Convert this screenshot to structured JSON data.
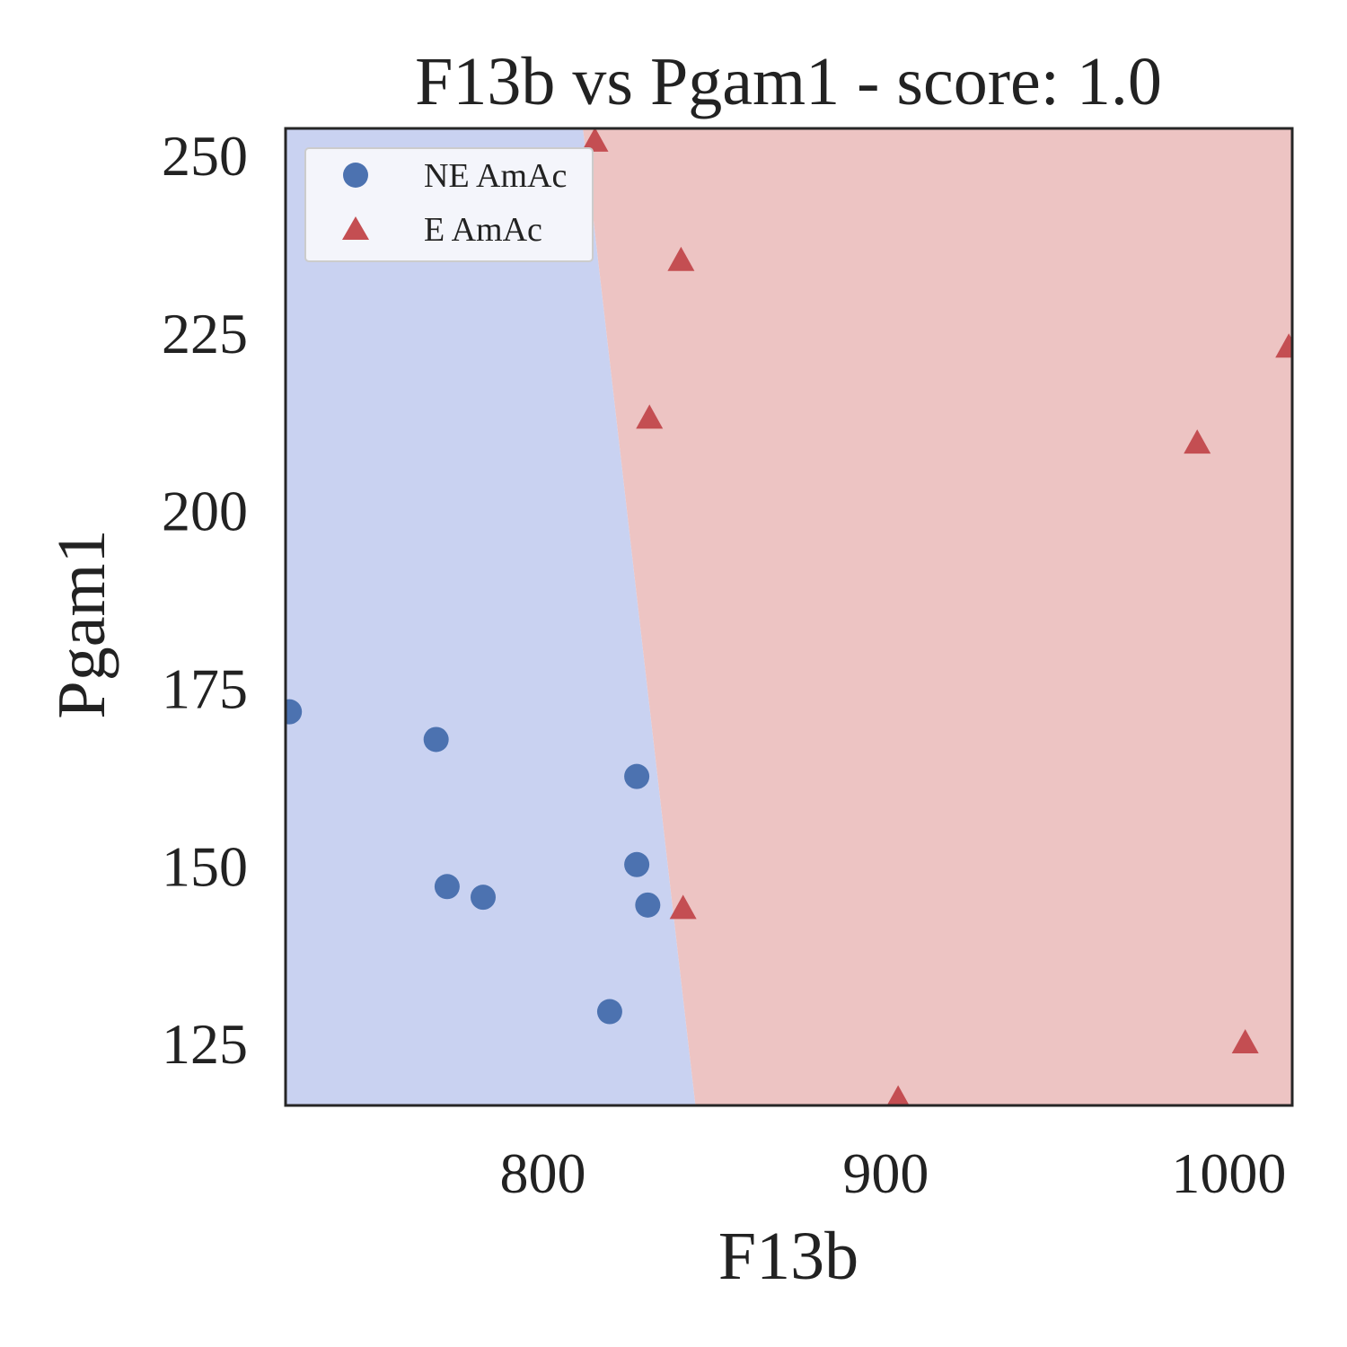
{
  "chart_data": {
    "type": "scatter",
    "title": "F13b vs Pgam1 - score: 1.0",
    "xlabel": "F13b",
    "ylabel": "Pgam1",
    "xlim": [
      725,
      1018.5
    ],
    "ylim": [
      116.3,
      253.8
    ],
    "xticks": [
      800,
      900,
      1000
    ],
    "yticks": [
      125,
      150,
      175,
      200,
      225,
      250
    ],
    "grid": false,
    "legend_position": "upper-left",
    "decision_boundary": [
      [
        811.7,
        253.8
      ],
      [
        844.5,
        116.3
      ]
    ],
    "regions": {
      "left": "NE AmAc",
      "right": "E AmAc"
    },
    "series": [
      {
        "name": "NE AmAc",
        "marker": "circle",
        "color": "#4c72b0",
        "points": [
          [
            726.1,
            171.7
          ],
          [
            768.9,
            167.8
          ],
          [
            772.1,
            147.1
          ],
          [
            782.6,
            145.6
          ],
          [
            827.4,
            162.6
          ],
          [
            827.4,
            150.2
          ],
          [
            830.6,
            144.5
          ],
          [
            819.5,
            129.5
          ]
        ]
      },
      {
        "name": "E AmAc",
        "marker": "triangle",
        "color": "#c44e52",
        "points": [
          [
            815.2,
            251.8
          ],
          [
            840.3,
            235.0
          ],
          [
            831.1,
            212.8
          ],
          [
            1017.5,
            222.8
          ],
          [
            990.8,
            209.3
          ],
          [
            840.9,
            143.8
          ],
          [
            1004.8,
            124.9
          ],
          [
            903.6,
            117.0
          ]
        ]
      }
    ],
    "colors": {
      "left_region": "#c9d2f1",
      "right_region": "#edc4c3",
      "axes_edge": "#262626",
      "legend_bg": "#f4f5fb",
      "legend_edge": "#cccccc"
    }
  }
}
